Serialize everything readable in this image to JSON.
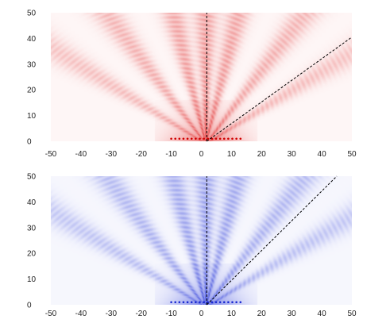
{
  "chart_data": [
    {
      "type": "heatmap",
      "title": "",
      "xlabel": "",
      "ylabel": "",
      "xlim": [
        -50,
        50
      ],
      "ylim": [
        0,
        50
      ],
      "x_ticks": [
        "-50",
        "-40",
        "-30",
        "-20",
        "-10",
        "0",
        "10",
        "20",
        "30",
        "40",
        "50"
      ],
      "y_ticks": [
        "0",
        "10",
        "20",
        "30",
        "40",
        "50"
      ],
      "colormap": "#e02020",
      "grid": false,
      "sources": {
        "x_start": -10,
        "x_end": 13,
        "y": 1,
        "color": "#d00000"
      },
      "beam_lobes_deg_from_vertical": [
        -54,
        -33,
        -12,
        0,
        12,
        33,
        54
      ],
      "reference_lines": [
        {
          "style": "dashed",
          "color": "#000000",
          "x1": 1.8,
          "y1": 0,
          "x2": 1.8,
          "y2": 50
        },
        {
          "style": "dashed",
          "color": "#000000",
          "x1": 1.8,
          "y1": 0,
          "x2": 50,
          "y2": 40.5
        }
      ]
    },
    {
      "type": "heatmap",
      "title": "",
      "xlabel": "",
      "ylabel": "",
      "xlim": [
        -50,
        50
      ],
      "ylim": [
        0,
        50
      ],
      "x_ticks": [
        "-50",
        "-40",
        "-30",
        "-20",
        "-10",
        "0",
        "10",
        "20",
        "30",
        "40",
        "50"
      ],
      "y_ticks": [
        "0",
        "10",
        "20",
        "30",
        "40",
        "50"
      ],
      "colormap": "#2030d8",
      "grid": false,
      "sources": {
        "x_start": -10,
        "x_end": 13,
        "y": 1,
        "color": "#1020d0"
      },
      "beam_lobes_deg_from_vertical": [
        -54,
        -33,
        -12,
        0,
        12,
        33,
        54
      ],
      "reference_lines": [
        {
          "style": "dashed",
          "color": "#000000",
          "x1": 1.8,
          "y1": 0,
          "x2": 1.8,
          "y2": 50
        },
        {
          "style": "dashed",
          "color": "#000000",
          "x1": 1.8,
          "y1": 0,
          "x2": 45,
          "y2": 50
        }
      ]
    }
  ]
}
